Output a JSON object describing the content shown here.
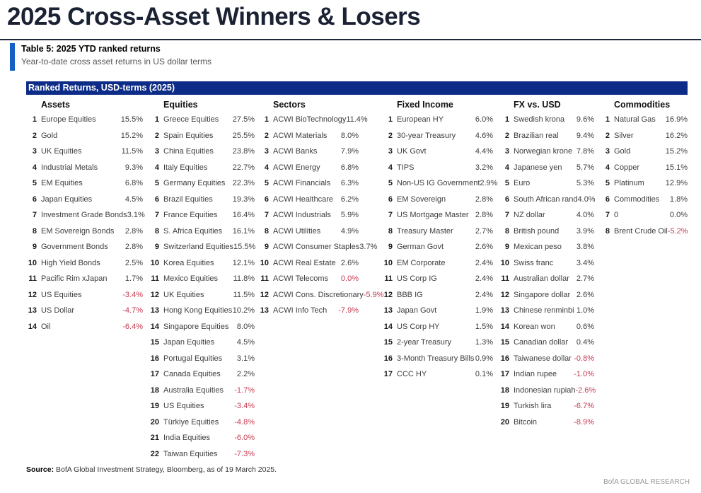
{
  "page": {
    "title": "2025 Cross-Asset Winners & Losers",
    "table_label": "Table 5: 2025 YTD ranked returns",
    "table_subtitle": "Year-to-date cross asset returns in US dollar terms",
    "banner": "Ranked Returns, USD-terms (2025)",
    "source_label": "Source:",
    "source_text": " BofA Global Investment Strategy, Bloomberg, as of 19 March 2025.",
    "footer_brand": "BofA GLOBAL RESEARCH"
  },
  "colors": {
    "banner_navy": "#0d2c87",
    "accent_blue": "#1661c8",
    "negative_red": "#c53b51",
    "title_navy": "#1b2234"
  },
  "table": {
    "columns": [
      {
        "header": "Assets",
        "rows": [
          {
            "rank": "1",
            "label": "Europe Equities",
            "value": "15.5%",
            "neg": false
          },
          {
            "rank": "2",
            "label": "Gold",
            "value": "15.2%",
            "neg": false
          },
          {
            "rank": "3",
            "label": "UK Equities",
            "value": "11.5%",
            "neg": false
          },
          {
            "rank": "4",
            "label": "Industrial Metals",
            "value": "9.3%",
            "neg": false
          },
          {
            "rank": "5",
            "label": "EM Equities",
            "value": "6.8%",
            "neg": false
          },
          {
            "rank": "6",
            "label": "Japan Equities",
            "value": "4.5%",
            "neg": false
          },
          {
            "rank": "7",
            "label": "Investment Grade Bonds",
            "value": "3.1%",
            "neg": false
          },
          {
            "rank": "8",
            "label": "EM Sovereign Bonds",
            "value": "2.8%",
            "neg": false
          },
          {
            "rank": "9",
            "label": "Government Bonds",
            "value": "2.8%",
            "neg": false
          },
          {
            "rank": "10",
            "label": "High Yield Bonds",
            "value": "2.5%",
            "neg": false
          },
          {
            "rank": "11",
            "label": "Pacific Rim xJapan",
            "value": "1.7%",
            "neg": false
          },
          {
            "rank": "12",
            "label": "US Equities",
            "value": "-3.4%",
            "neg": true
          },
          {
            "rank": "13",
            "label": "US Dollar",
            "value": "-4.7%",
            "neg": true
          },
          {
            "rank": "14",
            "label": "Oil",
            "value": "-6.4%",
            "neg": true
          }
        ]
      },
      {
        "header": "Equities",
        "rows": [
          {
            "rank": "1",
            "label": "Greece Equities",
            "value": "27.5%",
            "neg": false
          },
          {
            "rank": "2",
            "label": "Spain Equities",
            "value": "25.5%",
            "neg": false
          },
          {
            "rank": "3",
            "label": "China Equities",
            "value": "23.8%",
            "neg": false
          },
          {
            "rank": "4",
            "label": "Italy Equities",
            "value": "22.7%",
            "neg": false
          },
          {
            "rank": "5",
            "label": "Germany Equities",
            "value": "22.3%",
            "neg": false
          },
          {
            "rank": "6",
            "label": "Brazil Equities",
            "value": "19.3%",
            "neg": false
          },
          {
            "rank": "7",
            "label": "France Equities",
            "value": "16.4%",
            "neg": false
          },
          {
            "rank": "8",
            "label": "S. Africa Equities",
            "value": "16.1%",
            "neg": false
          },
          {
            "rank": "9",
            "label": "Switzerland Equities",
            "value": "15.5%",
            "neg": false
          },
          {
            "rank": "10",
            "label": "Korea Equities",
            "value": "12.1%",
            "neg": false
          },
          {
            "rank": "11",
            "label": "Mexico Equities",
            "value": "11.8%",
            "neg": false
          },
          {
            "rank": "12",
            "label": "UK Equities",
            "value": "11.5%",
            "neg": false
          },
          {
            "rank": "13",
            "label": "Hong Kong Equities",
            "value": "10.2%",
            "neg": false
          },
          {
            "rank": "14",
            "label": "Singapore Equities",
            "value": "8.0%",
            "neg": false
          },
          {
            "rank": "15",
            "label": "Japan Equities",
            "value": "4.5%",
            "neg": false
          },
          {
            "rank": "16",
            "label": "Portugal Equities",
            "value": "3.1%",
            "neg": false
          },
          {
            "rank": "17",
            "label": "Canada Equities",
            "value": "2.2%",
            "neg": false
          },
          {
            "rank": "18",
            "label": "Australia Equities",
            "value": "-1.7%",
            "neg": true
          },
          {
            "rank": "19",
            "label": "US Equities",
            "value": "-3.4%",
            "neg": true
          },
          {
            "rank": "20",
            "label": "Türkiye Equities",
            "value": "-4.8%",
            "neg": true
          },
          {
            "rank": "21",
            "label": "India Equities",
            "value": "-6.0%",
            "neg": true
          },
          {
            "rank": "22",
            "label": "Taiwan Equities",
            "value": "-7.3%",
            "neg": true
          }
        ]
      },
      {
        "header": "Sectors",
        "rows": [
          {
            "rank": "1",
            "label": "ACWI BioTechnology",
            "value": "11.4%",
            "neg": false
          },
          {
            "rank": "2",
            "label": "ACWI Materials",
            "value": "8.0%",
            "neg": false
          },
          {
            "rank": "3",
            "label": "ACWI Banks",
            "value": "7.9%",
            "neg": false
          },
          {
            "rank": "4",
            "label": "ACWI Energy",
            "value": "6.8%",
            "neg": false
          },
          {
            "rank": "5",
            "label": "ACWI Financials",
            "value": "6.3%",
            "neg": false
          },
          {
            "rank": "6",
            "label": "ACWI Healthcare",
            "value": "6.2%",
            "neg": false
          },
          {
            "rank": "7",
            "label": "ACWI Industrials",
            "value": "5.9%",
            "neg": false
          },
          {
            "rank": "8",
            "label": "ACWI Utilities",
            "value": "4.9%",
            "neg": false
          },
          {
            "rank": "9",
            "label": "ACWI Consumer Staples",
            "value": "3.7%",
            "neg": false
          },
          {
            "rank": "10",
            "label": "ACWI Real Estate",
            "value": "2.6%",
            "neg": false
          },
          {
            "rank": "11",
            "label": "ACWI Telecoms",
            "value": "0.0%",
            "neg": true
          },
          {
            "rank": "12",
            "label": "ACWI Cons. Discretionary",
            "value": "-5.9%",
            "neg": true
          },
          {
            "rank": "13",
            "label": "ACWI Info Tech",
            "value": "-7.9%",
            "neg": true
          }
        ]
      },
      {
        "header": "Fixed Income",
        "rows": [
          {
            "rank": "1",
            "label": "European HY",
            "value": "6.0%",
            "neg": false
          },
          {
            "rank": "2",
            "label": "30-year Treasury",
            "value": "4.6%",
            "neg": false
          },
          {
            "rank": "3",
            "label": "UK Govt",
            "value": "4.4%",
            "neg": false
          },
          {
            "rank": "4",
            "label": "TIPS",
            "value": "3.2%",
            "neg": false
          },
          {
            "rank": "5",
            "label": "Non-US IG Government",
            "value": "2.9%",
            "neg": false
          },
          {
            "rank": "6",
            "label": "EM Sovereign",
            "value": "2.8%",
            "neg": false
          },
          {
            "rank": "7",
            "label": "US Mortgage Master",
            "value": "2.8%",
            "neg": false
          },
          {
            "rank": "8",
            "label": "Treasury Master",
            "value": "2.7%",
            "neg": false
          },
          {
            "rank": "9",
            "label": "German Govt",
            "value": "2.6%",
            "neg": false
          },
          {
            "rank": "10",
            "label": "EM Corporate",
            "value": "2.4%",
            "neg": false
          },
          {
            "rank": "11",
            "label": "US Corp IG",
            "value": "2.4%",
            "neg": false
          },
          {
            "rank": "12",
            "label": "BBB IG",
            "value": "2.4%",
            "neg": false
          },
          {
            "rank": "13",
            "label": "Japan Govt",
            "value": "1.9%",
            "neg": false
          },
          {
            "rank": "14",
            "label": "US Corp HY",
            "value": "1.5%",
            "neg": false
          },
          {
            "rank": "15",
            "label": "2-year Treasury",
            "value": "1.3%",
            "neg": false
          },
          {
            "rank": "16",
            "label": "3-Month Treasury Bills",
            "value": "0.9%",
            "neg": false
          },
          {
            "rank": "17",
            "label": "CCC HY",
            "value": "0.1%",
            "neg": false
          }
        ]
      },
      {
        "header": "FX vs. USD",
        "rows": [
          {
            "rank": "1",
            "label": "Swedish krona",
            "value": "9.6%",
            "neg": false
          },
          {
            "rank": "2",
            "label": "Brazilian real",
            "value": "9.4%",
            "neg": false
          },
          {
            "rank": "3",
            "label": "Norwegian krone",
            "value": "7.8%",
            "neg": false
          },
          {
            "rank": "4",
            "label": "Japanese yen",
            "value": "5.7%",
            "neg": false
          },
          {
            "rank": "5",
            "label": "Euro",
            "value": "5.3%",
            "neg": false
          },
          {
            "rank": "6",
            "label": "South African rand",
            "value": "4.0%",
            "neg": false
          },
          {
            "rank": "7",
            "label": "NZ dollar",
            "value": "4.0%",
            "neg": false
          },
          {
            "rank": "8",
            "label": "British pound",
            "value": "3.9%",
            "neg": false
          },
          {
            "rank": "9",
            "label": "Mexican peso",
            "value": "3.8%",
            "neg": false
          },
          {
            "rank": "10",
            "label": "Swiss franc",
            "value": "3.4%",
            "neg": false
          },
          {
            "rank": "11",
            "label": "Australian dollar",
            "value": "2.7%",
            "neg": false
          },
          {
            "rank": "12",
            "label": "Singapore dollar",
            "value": "2.6%",
            "neg": false
          },
          {
            "rank": "13",
            "label": "Chinese renminbi",
            "value": "1.0%",
            "neg": false
          },
          {
            "rank": "14",
            "label": "Korean won",
            "value": "0.6%",
            "neg": false
          },
          {
            "rank": "15",
            "label": "Canadian dollar",
            "value": "0.4%",
            "neg": false
          },
          {
            "rank": "16",
            "label": "Taiwanese dollar",
            "value": "-0.8%",
            "neg": true
          },
          {
            "rank": "17",
            "label": "Indian rupee",
            "value": "-1.0%",
            "neg": true
          },
          {
            "rank": "18",
            "label": "Indonesian rupiah",
            "value": "-2.6%",
            "neg": true
          },
          {
            "rank": "19",
            "label": "Turkish lira",
            "value": "-6.7%",
            "neg": true
          },
          {
            "rank": "20",
            "label": "Bitcoin",
            "value": "-8.9%",
            "neg": true
          }
        ]
      },
      {
        "header": "Commodities",
        "rows": [
          {
            "rank": "1",
            "label": "Natural Gas",
            "value": "16.9%",
            "neg": false
          },
          {
            "rank": "2",
            "label": "Silver",
            "value": "16.2%",
            "neg": false
          },
          {
            "rank": "3",
            "label": "Gold",
            "value": "15.2%",
            "neg": false
          },
          {
            "rank": "4",
            "label": "Copper",
            "value": "15.1%",
            "neg": false
          },
          {
            "rank": "5",
            "label": "Platinum",
            "value": "12.9%",
            "neg": false
          },
          {
            "rank": "6",
            "label": "Commodities",
            "value": "1.8%",
            "neg": false
          },
          {
            "rank": "7",
            "label": "0",
            "value": "0.0%",
            "neg": false
          },
          {
            "rank": "8",
            "label": "Brent Crude Oil",
            "value": "-5.2%",
            "neg": true
          }
        ]
      }
    ]
  }
}
